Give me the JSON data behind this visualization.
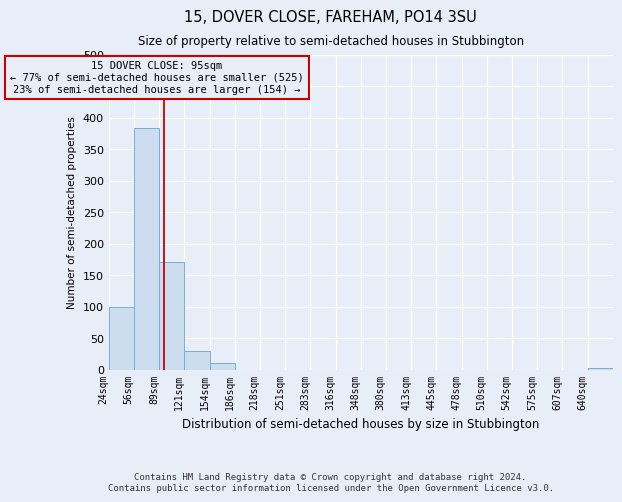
{
  "title": "15, DOVER CLOSE, FAREHAM, PO14 3SU",
  "subtitle": "Size of property relative to semi-detached houses in Stubbington",
  "xlabel": "Distribution of semi-detached houses by size in Stubbington",
  "ylabel": "Number of semi-detached properties",
  "footer_line1": "Contains HM Land Registry data © Crown copyright and database right 2024.",
  "footer_line2": "Contains public sector information licensed under the Open Government Licence v3.0.",
  "property_size": 95,
  "pct_smaller": 77,
  "n_smaller": 525,
  "pct_larger": 23,
  "n_larger": 154,
  "bin_edges": [
    24,
    56,
    89,
    121,
    154,
    186,
    218,
    251,
    283,
    316,
    348,
    380,
    413,
    445,
    478,
    510,
    542,
    575,
    607,
    640,
    672
  ],
  "bar_values": [
    100,
    383,
    170,
    30,
    10,
    0,
    0,
    0,
    0,
    0,
    0,
    0,
    0,
    0,
    0,
    0,
    0,
    0,
    0,
    2
  ],
  "bar_color": "#ccddf0",
  "bar_edge_color": "#7aadd4",
  "vline_color": "#cc0000",
  "annotation_box_color": "#cc0000",
  "bg_color": "#e8eef8",
  "grid_color": "#d0d8e8",
  "ylim_max": 500,
  "ytick_step": 50
}
